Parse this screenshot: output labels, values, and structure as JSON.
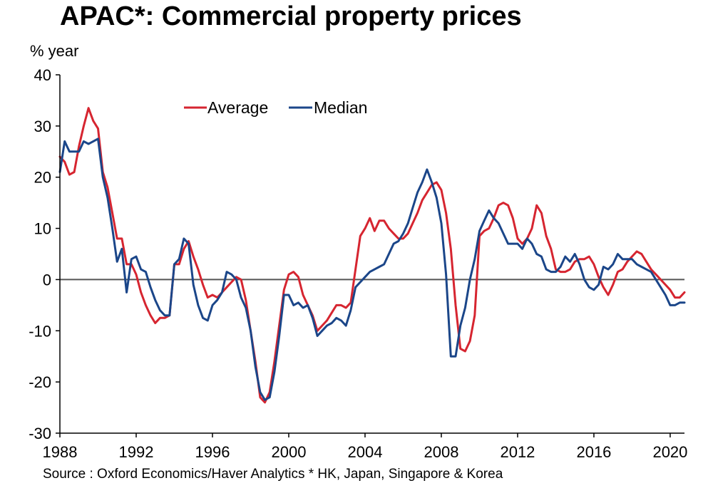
{
  "title": "APAC*: Commercial property prices",
  "source": "Source : Oxford Economics/Haver Analytics * HK, Japan, Singapore & Korea",
  "chart_data": {
    "type": "line",
    "title": "APAC*: Commercial property prices",
    "ylabel": "% year",
    "xlabel": "",
    "xlim": [
      1988,
      2020.75
    ],
    "ylim": [
      -30,
      40
    ],
    "xticks": [
      "1988",
      "1992",
      "1996",
      "2000",
      "2004",
      "2008",
      "2012",
      "2016",
      "2020"
    ],
    "yticks": [
      "40",
      "30",
      "20",
      "10",
      "0",
      "-10",
      "-20",
      "-30"
    ],
    "grid": false,
    "zero_line": true,
    "legend_position": "top-center",
    "colors": {
      "Average": "#d62530",
      "Median": "#1b4689",
      "zero_line": "#555555"
    },
    "series": [
      {
        "name": "Average",
        "points": [
          [
            1988.0,
            24
          ],
          [
            1988.25,
            23
          ],
          [
            1988.5,
            20.5
          ],
          [
            1988.75,
            21
          ],
          [
            1989.0,
            26
          ],
          [
            1989.25,
            30
          ],
          [
            1989.5,
            33.5
          ],
          [
            1989.75,
            31
          ],
          [
            1990.0,
            29.5
          ],
          [
            1990.25,
            21
          ],
          [
            1990.5,
            18
          ],
          [
            1990.75,
            13
          ],
          [
            1991.0,
            8
          ],
          [
            1991.25,
            8
          ],
          [
            1991.5,
            3
          ],
          [
            1991.75,
            3
          ],
          [
            1992.0,
            1
          ],
          [
            1992.25,
            -2.5
          ],
          [
            1992.5,
            -5
          ],
          [
            1992.75,
            -7
          ],
          [
            1993.0,
            -8.5
          ],
          [
            1993.25,
            -7.5
          ],
          [
            1993.5,
            -7.5
          ],
          [
            1993.75,
            -7
          ],
          [
            1994.0,
            3
          ],
          [
            1994.25,
            3
          ],
          [
            1994.5,
            6
          ],
          [
            1994.75,
            7.5
          ],
          [
            1995.0,
            4.5
          ],
          [
            1995.25,
            2
          ],
          [
            1995.5,
            -1
          ],
          [
            1995.75,
            -3.5
          ],
          [
            1996.0,
            -3
          ],
          [
            1996.25,
            -3.5
          ],
          [
            1996.5,
            -2.5
          ],
          [
            1996.75,
            -1.5
          ],
          [
            1997.0,
            -0.5
          ],
          [
            1997.25,
            0.5
          ],
          [
            1997.5,
            0
          ],
          [
            1997.75,
            -4
          ],
          [
            1998.0,
            -10
          ],
          [
            1998.25,
            -16
          ],
          [
            1998.5,
            -23
          ],
          [
            1998.75,
            -24
          ],
          [
            1999.0,
            -22
          ],
          [
            1999.25,
            -16
          ],
          [
            1999.5,
            -9
          ],
          [
            1999.75,
            -2
          ],
          [
            2000.0,
            1
          ],
          [
            2000.25,
            1.5
          ],
          [
            2000.5,
            0.5
          ],
          [
            2000.75,
            -3
          ],
          [
            2001.0,
            -5
          ],
          [
            2001.25,
            -7
          ],
          [
            2001.5,
            -10
          ],
          [
            2001.75,
            -9
          ],
          [
            2002.0,
            -8
          ],
          [
            2002.25,
            -6.5
          ],
          [
            2002.5,
            -5
          ],
          [
            2002.75,
            -5
          ],
          [
            2003.0,
            -5.5
          ],
          [
            2003.25,
            -4.5
          ],
          [
            2003.5,
            2
          ],
          [
            2003.75,
            8.5
          ],
          [
            2004.0,
            10
          ],
          [
            2004.25,
            12
          ],
          [
            2004.5,
            9.5
          ],
          [
            2004.75,
            11.5
          ],
          [
            2005.0,
            11.5
          ],
          [
            2005.25,
            10
          ],
          [
            2005.5,
            9
          ],
          [
            2005.75,
            8
          ],
          [
            2006.0,
            8
          ],
          [
            2006.25,
            9
          ],
          [
            2006.5,
            11
          ],
          [
            2006.75,
            13
          ],
          [
            2007.0,
            15.5
          ],
          [
            2007.25,
            17
          ],
          [
            2007.5,
            18.5
          ],
          [
            2007.75,
            19
          ],
          [
            2008.0,
            17.5
          ],
          [
            2008.25,
            13
          ],
          [
            2008.5,
            6
          ],
          [
            2008.75,
            -5
          ],
          [
            2009.0,
            -13.5
          ],
          [
            2009.25,
            -14
          ],
          [
            2009.5,
            -12
          ],
          [
            2009.75,
            -7
          ],
          [
            2010.0,
            8.5
          ],
          [
            2010.25,
            9.5
          ],
          [
            2010.5,
            10
          ],
          [
            2010.75,
            12
          ],
          [
            2011.0,
            14.5
          ],
          [
            2011.25,
            15
          ],
          [
            2011.5,
            14.5
          ],
          [
            2011.75,
            12
          ],
          [
            2012.0,
            8
          ],
          [
            2012.25,
            7
          ],
          [
            2012.5,
            8
          ],
          [
            2012.75,
            10
          ],
          [
            2013.0,
            14.5
          ],
          [
            2013.25,
            13
          ],
          [
            2013.5,
            8.5
          ],
          [
            2013.75,
            6
          ],
          [
            2014.0,
            2
          ],
          [
            2014.25,
            1.5
          ],
          [
            2014.5,
            1.5
          ],
          [
            2014.75,
            2
          ],
          [
            2015.0,
            3.5
          ],
          [
            2015.25,
            4
          ],
          [
            2015.5,
            4
          ],
          [
            2015.75,
            4.5
          ],
          [
            2016.0,
            3
          ],
          [
            2016.25,
            0.5
          ],
          [
            2016.5,
            -1.5
          ],
          [
            2016.75,
            -3
          ],
          [
            2017.0,
            -1
          ],
          [
            2017.25,
            1.5
          ],
          [
            2017.5,
            2
          ],
          [
            2017.75,
            3.5
          ],
          [
            2018.0,
            4.5
          ],
          [
            2018.25,
            5.5
          ],
          [
            2018.5,
            5
          ],
          [
            2018.75,
            3.5
          ],
          [
            2019.0,
            2
          ],
          [
            2019.25,
            1
          ],
          [
            2019.5,
            0
          ],
          [
            2019.75,
            -1
          ],
          [
            2020.0,
            -2
          ],
          [
            2020.25,
            -3.5
          ],
          [
            2020.5,
            -3.5
          ],
          [
            2020.75,
            -2.5
          ]
        ]
      },
      {
        "name": "Median",
        "points": [
          [
            1988.0,
            21
          ],
          [
            1988.25,
            27
          ],
          [
            1988.5,
            25
          ],
          [
            1988.75,
            25
          ],
          [
            1989.0,
            25
          ],
          [
            1989.25,
            27
          ],
          [
            1989.5,
            26.5
          ],
          [
            1989.75,
            27
          ],
          [
            1990.0,
            27.5
          ],
          [
            1990.25,
            20
          ],
          [
            1990.5,
            16
          ],
          [
            1990.75,
            10
          ],
          [
            1991.0,
            3.5
          ],
          [
            1991.25,
            6
          ],
          [
            1991.5,
            -2.5
          ],
          [
            1991.75,
            4
          ],
          [
            1992.0,
            4.5
          ],
          [
            1992.25,
            2
          ],
          [
            1992.5,
            1.5
          ],
          [
            1992.75,
            -1.5
          ],
          [
            1993.0,
            -4
          ],
          [
            1993.25,
            -6
          ],
          [
            1993.5,
            -7
          ],
          [
            1993.75,
            -7
          ],
          [
            1994.0,
            3
          ],
          [
            1994.25,
            4
          ],
          [
            1994.5,
            8
          ],
          [
            1994.75,
            7
          ],
          [
            1995.0,
            -1
          ],
          [
            1995.25,
            -5
          ],
          [
            1995.5,
            -7.5
          ],
          [
            1995.75,
            -8
          ],
          [
            1996.0,
            -5
          ],
          [
            1996.25,
            -4
          ],
          [
            1996.5,
            -2.5
          ],
          [
            1996.75,
            1.5
          ],
          [
            1997.0,
            1
          ],
          [
            1997.25,
            0
          ],
          [
            1997.5,
            -3.5
          ],
          [
            1997.75,
            -5.5
          ],
          [
            1998.0,
            -10
          ],
          [
            1998.25,
            -17
          ],
          [
            1998.5,
            -22
          ],
          [
            1998.75,
            -23.5
          ],
          [
            1999.0,
            -23
          ],
          [
            1999.25,
            -18
          ],
          [
            1999.5,
            -11
          ],
          [
            1999.75,
            -3
          ],
          [
            2000.0,
            -3
          ],
          [
            2000.25,
            -5
          ],
          [
            2000.5,
            -4.5
          ],
          [
            2000.75,
            -5.5
          ],
          [
            2001.0,
            -5
          ],
          [
            2001.25,
            -7.5
          ],
          [
            2001.5,
            -11
          ],
          [
            2001.75,
            -10
          ],
          [
            2002.0,
            -9
          ],
          [
            2002.25,
            -8.5
          ],
          [
            2002.5,
            -7.5
          ],
          [
            2002.75,
            -8
          ],
          [
            2003.0,
            -9
          ],
          [
            2003.25,
            -6
          ],
          [
            2003.5,
            -1.5
          ],
          [
            2003.75,
            -0.5
          ],
          [
            2004.0,
            0.5
          ],
          [
            2004.25,
            1.5
          ],
          [
            2004.5,
            2
          ],
          [
            2004.75,
            2.5
          ],
          [
            2005.0,
            3
          ],
          [
            2005.25,
            5
          ],
          [
            2005.5,
            7
          ],
          [
            2005.75,
            7.5
          ],
          [
            2006.0,
            9
          ],
          [
            2006.25,
            11
          ],
          [
            2006.5,
            14
          ],
          [
            2006.75,
            17
          ],
          [
            2007.0,
            19
          ],
          [
            2007.25,
            21.5
          ],
          [
            2007.5,
            19
          ],
          [
            2007.75,
            16
          ],
          [
            2008.0,
            11
          ],
          [
            2008.25,
            1
          ],
          [
            2008.5,
            -15
          ],
          [
            2008.75,
            -15
          ],
          [
            2009.0,
            -9
          ],
          [
            2009.25,
            -5.5
          ],
          [
            2009.5,
            0
          ],
          [
            2009.75,
            4
          ],
          [
            2010.0,
            9.5
          ],
          [
            2010.25,
            11.5
          ],
          [
            2010.5,
            13.5
          ],
          [
            2010.75,
            12
          ],
          [
            2011.0,
            11
          ],
          [
            2011.25,
            9
          ],
          [
            2011.5,
            7
          ],
          [
            2011.75,
            7
          ],
          [
            2012.0,
            7
          ],
          [
            2012.25,
            6
          ],
          [
            2012.5,
            8
          ],
          [
            2012.75,
            7
          ],
          [
            2013.0,
            5
          ],
          [
            2013.25,
            4.5
          ],
          [
            2013.5,
            2
          ],
          [
            2013.75,
            1.5
          ],
          [
            2014.0,
            1.5
          ],
          [
            2014.25,
            2.5
          ],
          [
            2014.5,
            4.5
          ],
          [
            2014.75,
            3.5
          ],
          [
            2015.0,
            5
          ],
          [
            2015.25,
            3
          ],
          [
            2015.5,
            0
          ],
          [
            2015.75,
            -1.5
          ],
          [
            2016.0,
            -2
          ],
          [
            2016.25,
            -1
          ],
          [
            2016.5,
            2.5
          ],
          [
            2016.75,
            2
          ],
          [
            2017.0,
            3
          ],
          [
            2017.25,
            5
          ],
          [
            2017.5,
            4
          ],
          [
            2017.75,
            4
          ],
          [
            2018.0,
            4
          ],
          [
            2018.25,
            3
          ],
          [
            2018.5,
            2.5
          ],
          [
            2018.75,
            2
          ],
          [
            2019.0,
            1.5
          ],
          [
            2019.25,
            0
          ],
          [
            2019.5,
            -1.5
          ],
          [
            2019.75,
            -3
          ],
          [
            2020.0,
            -5
          ],
          [
            2020.25,
            -5
          ],
          [
            2020.5,
            -4.5
          ],
          [
            2020.75,
            -4.5
          ]
        ]
      }
    ]
  }
}
